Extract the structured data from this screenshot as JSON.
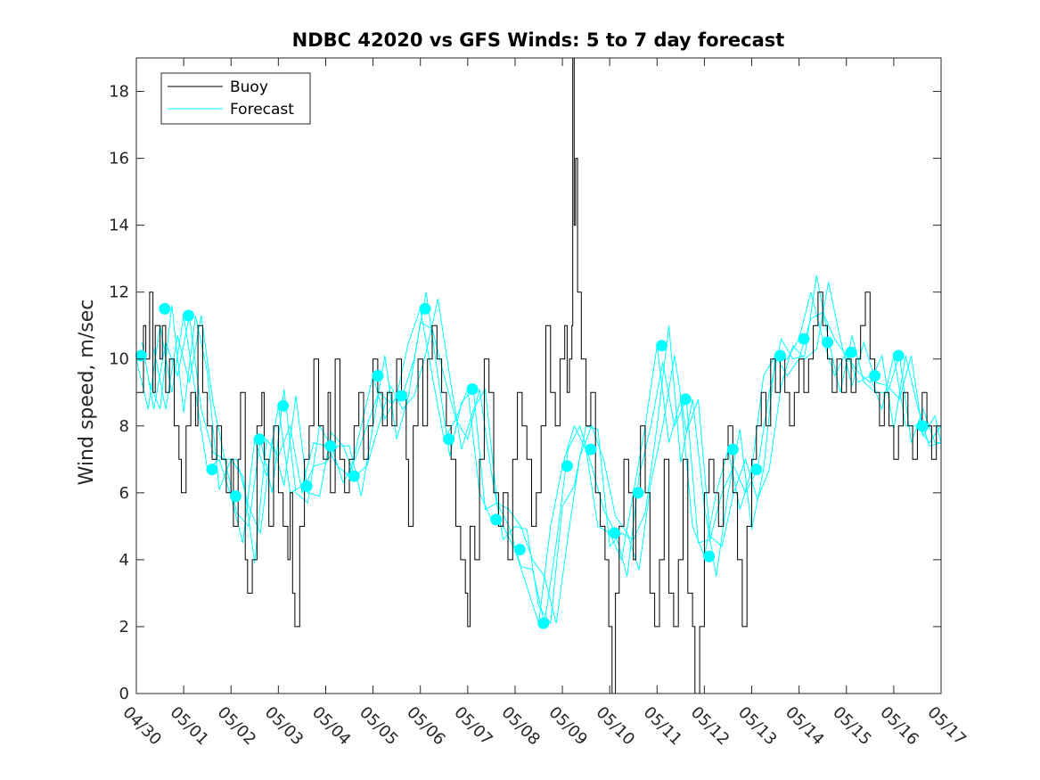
{
  "chart_data": {
    "type": "line",
    "title": "NDBC 42020 vs GFS Winds: 5 to 7 day forecast",
    "xlabel": "",
    "ylabel": "Wind speed, m/sec",
    "xlim": [
      0,
      17
    ],
    "ylim": [
      0,
      19
    ],
    "xticks": [
      "04/30",
      "05/01",
      "05/02",
      "05/03",
      "05/04",
      "05/05",
      "05/06",
      "05/07",
      "05/08",
      "05/09",
      "05/10",
      "05/11",
      "05/12",
      "05/13",
      "05/14",
      "05/15",
      "05/16",
      "05/17"
    ],
    "yticks": [
      0,
      2,
      4,
      6,
      8,
      10,
      12,
      14,
      16,
      18
    ],
    "grid": false,
    "legend": {
      "position": "top-left",
      "entries": [
        "Buoy",
        "Forecast"
      ]
    },
    "colors": {
      "buoy": "#000000",
      "forecast": "#00ffff"
    },
    "series": [
      {
        "name": "Buoy",
        "x_unit": "days since 04/30",
        "points": [
          [
            0.0,
            9
          ],
          [
            0.1,
            9
          ],
          [
            0.15,
            11
          ],
          [
            0.2,
            10
          ],
          [
            0.28,
            12
          ],
          [
            0.35,
            9
          ],
          [
            0.4,
            11
          ],
          [
            0.5,
            10
          ],
          [
            0.55,
            11
          ],
          [
            0.62,
            9
          ],
          [
            0.7,
            10
          ],
          [
            0.8,
            8
          ],
          [
            0.9,
            7
          ],
          [
            0.95,
            6
          ],
          [
            1.05,
            8
          ],
          [
            1.15,
            9
          ],
          [
            1.25,
            8
          ],
          [
            1.3,
            11
          ],
          [
            1.4,
            9
          ],
          [
            1.5,
            8
          ],
          [
            1.6,
            7
          ],
          [
            1.7,
            8
          ],
          [
            1.8,
            7
          ],
          [
            1.9,
            6
          ],
          [
            2.0,
            7
          ],
          [
            2.05,
            5
          ],
          [
            2.15,
            7
          ],
          [
            2.2,
            9
          ],
          [
            2.3,
            4
          ],
          [
            2.35,
            3
          ],
          [
            2.45,
            4
          ],
          [
            2.55,
            8
          ],
          [
            2.65,
            9
          ],
          [
            2.7,
            7
          ],
          [
            2.8,
            5
          ],
          [
            2.9,
            8
          ],
          [
            3.0,
            6
          ],
          [
            3.1,
            5
          ],
          [
            3.2,
            4
          ],
          [
            3.25,
            6
          ],
          [
            3.3,
            3
          ],
          [
            3.35,
            2
          ],
          [
            3.45,
            5
          ],
          [
            3.55,
            7
          ],
          [
            3.65,
            8
          ],
          [
            3.75,
            10
          ],
          [
            3.85,
            8
          ],
          [
            3.95,
            7
          ],
          [
            4.05,
            9
          ],
          [
            4.1,
            6
          ],
          [
            4.2,
            10
          ],
          [
            4.3,
            7
          ],
          [
            4.4,
            6
          ],
          [
            4.5,
            7
          ],
          [
            4.6,
            8
          ],
          [
            4.7,
            9
          ],
          [
            4.8,
            7
          ],
          [
            4.9,
            8
          ],
          [
            5.0,
            10
          ],
          [
            5.1,
            9
          ],
          [
            5.2,
            8
          ],
          [
            5.3,
            9
          ],
          [
            5.4,
            8
          ],
          [
            5.5,
            10
          ],
          [
            5.6,
            9
          ],
          [
            5.7,
            7
          ],
          [
            5.75,
            5
          ],
          [
            5.85,
            8
          ],
          [
            5.95,
            10
          ],
          [
            6.05,
            8
          ],
          [
            6.15,
            10
          ],
          [
            6.25,
            11
          ],
          [
            6.35,
            10
          ],
          [
            6.45,
            9
          ],
          [
            6.55,
            8
          ],
          [
            6.65,
            7
          ],
          [
            6.75,
            5
          ],
          [
            6.85,
            4
          ],
          [
            6.95,
            3
          ],
          [
            7.0,
            2
          ],
          [
            7.05,
            5
          ],
          [
            7.15,
            4
          ],
          [
            7.25,
            7
          ],
          [
            7.35,
            10
          ],
          [
            7.45,
            9
          ],
          [
            7.55,
            6
          ],
          [
            7.65,
            5
          ],
          [
            7.75,
            6
          ],
          [
            7.85,
            4
          ],
          [
            7.95,
            7
          ],
          [
            8.05,
            9
          ],
          [
            8.15,
            8
          ],
          [
            8.25,
            7
          ],
          [
            8.35,
            5
          ],
          [
            8.45,
            6
          ],
          [
            8.55,
            8
          ],
          [
            8.65,
            11
          ],
          [
            8.75,
            9
          ],
          [
            8.85,
            8
          ],
          [
            8.95,
            10
          ],
          [
            9.05,
            11
          ],
          [
            9.1,
            9
          ],
          [
            9.15,
            10
          ],
          [
            9.2,
            11
          ],
          [
            9.22,
            19
          ],
          [
            9.25,
            14
          ],
          [
            9.28,
            16
          ],
          [
            9.32,
            12
          ],
          [
            9.4,
            10
          ],
          [
            9.5,
            8
          ],
          [
            9.6,
            9
          ],
          [
            9.7,
            6
          ],
          [
            9.8,
            5
          ],
          [
            9.9,
            4
          ],
          [
            9.98,
            2
          ],
          [
            10.05,
            0
          ],
          [
            10.12,
            3
          ],
          [
            10.2,
            5
          ],
          [
            10.3,
            7
          ],
          [
            10.4,
            6
          ],
          [
            10.5,
            4
          ],
          [
            10.55,
            6
          ],
          [
            10.65,
            8
          ],
          [
            10.75,
            6
          ],
          [
            10.85,
            3
          ],
          [
            10.95,
            2
          ],
          [
            11.05,
            4
          ],
          [
            11.15,
            7
          ],
          [
            11.25,
            3
          ],
          [
            11.35,
            2
          ],
          [
            11.45,
            4
          ],
          [
            11.55,
            7
          ],
          [
            11.65,
            3
          ],
          [
            11.75,
            2
          ],
          [
            11.8,
            0
          ],
          [
            11.9,
            2
          ],
          [
            12.0,
            6
          ],
          [
            12.1,
            7
          ],
          [
            12.2,
            6
          ],
          [
            12.3,
            5
          ],
          [
            12.4,
            7
          ],
          [
            12.5,
            8
          ],
          [
            12.6,
            6
          ],
          [
            12.7,
            4
          ],
          [
            12.8,
            2
          ],
          [
            12.9,
            5
          ],
          [
            13.0,
            7
          ],
          [
            13.1,
            8
          ],
          [
            13.2,
            9
          ],
          [
            13.3,
            8
          ],
          [
            13.4,
            10
          ],
          [
            13.5,
            9
          ],
          [
            13.6,
            10
          ],
          [
            13.7,
            9
          ],
          [
            13.8,
            8
          ],
          [
            13.9,
            9
          ],
          [
            14.0,
            10
          ],
          [
            14.1,
            9
          ],
          [
            14.2,
            10
          ],
          [
            14.3,
            11
          ],
          [
            14.4,
            12
          ],
          [
            14.5,
            11
          ],
          [
            14.6,
            10
          ],
          [
            14.7,
            9
          ],
          [
            14.8,
            10
          ],
          [
            14.9,
            9
          ],
          [
            15.0,
            10
          ],
          [
            15.1,
            9
          ],
          [
            15.2,
            10
          ],
          [
            15.3,
            11
          ],
          [
            15.4,
            12
          ],
          [
            15.5,
            10
          ],
          [
            15.6,
            9
          ],
          [
            15.7,
            8
          ],
          [
            15.8,
            9
          ],
          [
            15.9,
            8
          ],
          [
            16.0,
            7
          ],
          [
            16.1,
            8
          ],
          [
            16.2,
            9
          ],
          [
            16.3,
            8
          ],
          [
            16.4,
            7
          ],
          [
            16.5,
            8
          ],
          [
            16.6,
            9
          ],
          [
            16.7,
            8
          ],
          [
            16.8,
            7
          ],
          [
            16.9,
            8
          ],
          [
            17.0,
            8
          ]
        ]
      },
      {
        "name": "Forecast",
        "x_unit": "days since 04/30",
        "points": [
          [
            0.0,
            10.0
          ],
          [
            0.25,
            8.5
          ],
          [
            0.5,
            11.0
          ],
          [
            0.75,
            9.0
          ],
          [
            1.0,
            11.3
          ],
          [
            1.25,
            9.0
          ],
          [
            1.5,
            6.7
          ],
          [
            1.75,
            7.0
          ],
          [
            2.0,
            5.9
          ],
          [
            2.25,
            4.5
          ],
          [
            2.5,
            7.6
          ],
          [
            2.75,
            6.5
          ],
          [
            3.0,
            8.6
          ],
          [
            3.25,
            6.0
          ],
          [
            3.5,
            6.2
          ],
          [
            3.75,
            7.5
          ],
          [
            4.0,
            7.4
          ],
          [
            4.25,
            6.8
          ],
          [
            4.5,
            6.5
          ],
          [
            4.75,
            8.0
          ],
          [
            5.0,
            9.5
          ],
          [
            5.25,
            8.2
          ],
          [
            5.5,
            8.9
          ],
          [
            5.75,
            10.5
          ],
          [
            6.0,
            11.5
          ],
          [
            6.25,
            9.5
          ],
          [
            6.5,
            7.6
          ],
          [
            6.75,
            8.2
          ],
          [
            7.0,
            9.1
          ],
          [
            7.25,
            6.0
          ],
          [
            7.5,
            5.2
          ],
          [
            7.75,
            5.0
          ],
          [
            8.0,
            4.3
          ],
          [
            8.25,
            3.2
          ],
          [
            8.5,
            2.1
          ],
          [
            8.75,
            5.0
          ],
          [
            9.0,
            6.8
          ],
          [
            9.25,
            8.0
          ],
          [
            9.5,
            7.3
          ],
          [
            9.75,
            5.0
          ],
          [
            10.0,
            4.8
          ],
          [
            10.25,
            4.0
          ],
          [
            10.5,
            6.0
          ],
          [
            10.75,
            8.0
          ],
          [
            11.0,
            10.4
          ],
          [
            11.25,
            7.5
          ],
          [
            11.5,
            8.8
          ],
          [
            11.75,
            5.0
          ],
          [
            12.0,
            4.1
          ],
          [
            12.25,
            6.0
          ],
          [
            12.5,
            7.3
          ],
          [
            12.75,
            5.5
          ],
          [
            13.0,
            6.7
          ],
          [
            13.25,
            9.5
          ],
          [
            13.5,
            10.1
          ],
          [
            13.75,
            10.0
          ],
          [
            14.0,
            10.6
          ],
          [
            14.25,
            12.0
          ],
          [
            14.5,
            10.6
          ],
          [
            14.75,
            9.5
          ],
          [
            15.0,
            10.2
          ],
          [
            15.25,
            9.3
          ],
          [
            15.5,
            9.5
          ],
          [
            15.75,
            8.5
          ],
          [
            16.0,
            10.1
          ],
          [
            16.25,
            8.0
          ],
          [
            16.5,
            8.0
          ],
          [
            16.75,
            7.5
          ],
          [
            17.0,
            8.0
          ]
        ]
      }
    ],
    "forecast_markers": {
      "x": [
        0.1,
        0.6,
        1.1,
        1.6,
        2.1,
        2.6,
        3.1,
        3.6,
        4.1,
        4.6,
        5.1,
        5.6,
        6.1,
        6.6,
        7.1,
        7.6,
        8.1,
        8.6,
        9.1,
        9.6,
        10.1,
        10.6,
        11.1,
        11.6,
        12.1,
        12.6,
        13.1,
        13.6,
        14.1,
        14.6,
        15.1,
        15.6,
        16.1,
        16.6
      ],
      "y": [
        10.1,
        11.5,
        11.3,
        6.7,
        5.9,
        7.6,
        8.6,
        6.2,
        7.4,
        6.5,
        9.5,
        8.9,
        11.5,
        7.6,
        9.1,
        5.2,
        4.3,
        2.1,
        6.8,
        7.3,
        4.8,
        6.0,
        10.4,
        8.8,
        4.1,
        7.3,
        6.7,
        10.1,
        10.6,
        10.5,
        10.2,
        9.5,
        10.1,
        8.0
      ]
    }
  }
}
